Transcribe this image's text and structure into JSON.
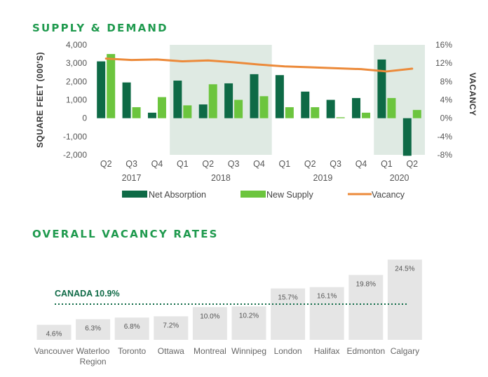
{
  "colors": {
    "net_absorption": "#0e6a46",
    "new_supply": "#6cc53e",
    "vacancy": "#ec8a3a",
    "shade": "#dfeae3",
    "title": "#1f9a4e",
    "vacancy_bar": "#e5e5e5",
    "canada_line": "#0e6a46"
  },
  "sections": {
    "supply_demand_title": "SUPPLY & DEMAND",
    "vacancy_rates_title": "OVERALL VACANCY RATES"
  },
  "chart_data": [
    {
      "type": "bar",
      "title": "SUPPLY & DEMAND",
      "ylabel": "SQUARE FEET (000'S)",
      "y2label": "VACANCY",
      "ylim": [
        -2000,
        4000
      ],
      "y2lim": [
        -8,
        16
      ],
      "yticks": [
        -2000,
        -1000,
        0,
        1000,
        2000,
        3000,
        4000
      ],
      "ytick_labels": [
        "-2,000",
        "-1,000",
        "0",
        "1,000",
        "2,000",
        "3,000",
        "4,000"
      ],
      "y2ticks": [
        -8,
        -4,
        0,
        4,
        8,
        12,
        16
      ],
      "y2tick_labels": [
        "-8%",
        "-4%",
        "0%",
        "4%",
        "8%",
        "12%",
        "16%"
      ],
      "categories": [
        "Q2",
        "Q3",
        "Q4",
        "Q1",
        "Q2",
        "Q3",
        "Q4",
        "Q1",
        "Q2",
        "Q3",
        "Q4",
        "Q1",
        "Q2"
      ],
      "years": [
        {
          "label": "2017",
          "start": 0,
          "end": 2
        },
        {
          "label": "2018",
          "start": 3,
          "end": 6
        },
        {
          "label": "2019",
          "start": 7,
          "end": 10
        },
        {
          "label": "2020",
          "start": 11,
          "end": 12
        }
      ],
      "shaded_years": [
        "2018",
        "2020"
      ],
      "series": [
        {
          "name": "Net Absorption",
          "type": "bar",
          "axis": "left",
          "values": [
            3100,
            1950,
            300,
            2050,
            750,
            1900,
            2400,
            2350,
            1450,
            1000,
            1100,
            3200,
            -2050
          ]
        },
        {
          "name": "New Supply",
          "type": "bar",
          "axis": "left",
          "values": [
            3500,
            600,
            1150,
            700,
            1850,
            1000,
            1200,
            600,
            600,
            50,
            300,
            1100,
            450
          ]
        },
        {
          "name": "Vacancy",
          "type": "line",
          "axis": "right",
          "values": [
            13.0,
            12.7,
            12.8,
            12.4,
            12.6,
            12.2,
            11.7,
            11.3,
            11.1,
            10.9,
            10.7,
            10.2,
            10.8
          ]
        }
      ],
      "legend": [
        "Net Absorption",
        "New Supply",
        "Vacancy"
      ],
      "legend_position": "bottom",
      "grid": false
    },
    {
      "type": "bar",
      "title": "OVERALL VACANCY RATES",
      "categories": [
        [
          "Vancouver"
        ],
        [
          "Waterloo",
          "Region"
        ],
        [
          "Toronto"
        ],
        [
          "Ottawa"
        ],
        [
          "Montreal"
        ],
        [
          "Winnipeg"
        ],
        [
          "London"
        ],
        [
          "Halifax"
        ],
        [
          "Edmonton"
        ],
        [
          "Calgary"
        ]
      ],
      "values": [
        4.6,
        6.3,
        6.8,
        7.2,
        10.0,
        10.2,
        15.7,
        16.1,
        19.8,
        24.5
      ],
      "value_labels": [
        "4.6%",
        "6.3%",
        "6.8%",
        "7.2%",
        "10.0%",
        "10.2%",
        "15.7%",
        "16.1%",
        "19.8%",
        "24.5%"
      ],
      "reference_line": {
        "label": "CANADA 10.9%",
        "value": 10.9
      },
      "grid": false
    }
  ]
}
